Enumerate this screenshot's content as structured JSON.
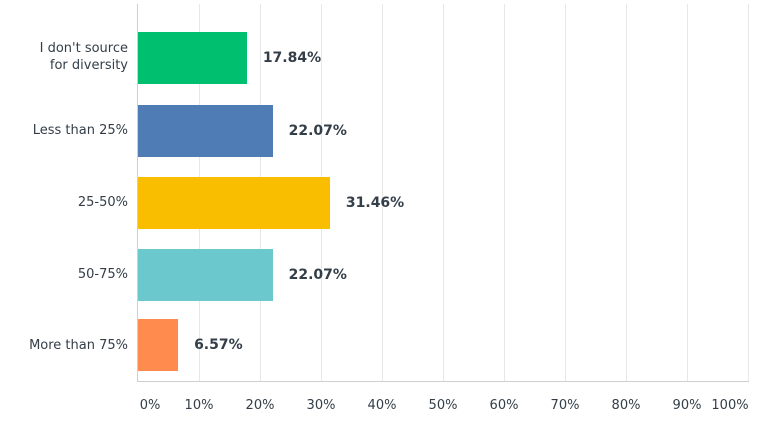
{
  "chart_data": {
    "type": "bar",
    "orientation": "horizontal",
    "title": "",
    "xlabel": "",
    "ylabel": "",
    "categories": [
      "I don't source for diversity",
      "Less than 25%",
      "25-50%",
      "50-75%",
      "More than 75%"
    ],
    "values": [
      17.84,
      22.07,
      31.46,
      22.07,
      6.57
    ],
    "value_labels": [
      "17.84%",
      "22.07%",
      "31.46%",
      "22.07%",
      "6.57%"
    ],
    "colors": [
      "#00bf6f",
      "#507cb6",
      "#f9be00",
      "#6bc8cd",
      "#ff8b4f"
    ],
    "xlim": [
      0,
      100
    ],
    "x_ticks": [
      "0%",
      "10%",
      "20%",
      "30%",
      "40%",
      "50%",
      "60%",
      "70%",
      "80%",
      "90%",
      "100%"
    ],
    "grid": true,
    "legend": null
  },
  "labels": {
    "cat0_line1": "I don't source",
    "cat0_line2": "for diversity",
    "cat1": "Less than 25%",
    "cat2": "25-50%",
    "cat3": "50-75%",
    "cat4": "More than 75%"
  }
}
